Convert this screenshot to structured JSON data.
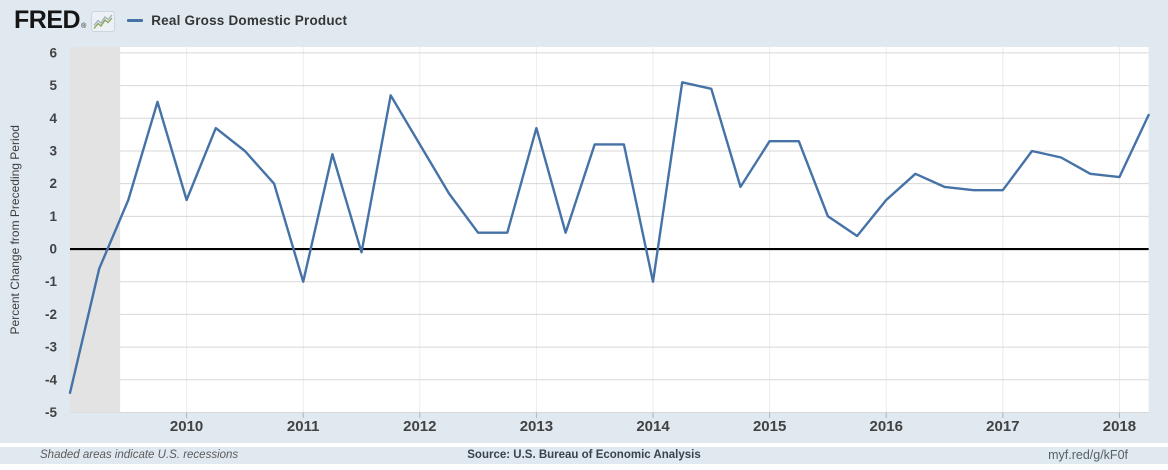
{
  "header": {
    "logo_text": "FRED",
    "registered_mark": "®",
    "series_label": "Real Gross Domestic Product"
  },
  "footer": {
    "note": "Shaded areas indicate U.S. recessions",
    "source": "Source: U.S. Bureau of Economic Analysis",
    "shortlink": "myf.red/g/kF0f"
  },
  "colors": {
    "background": "#e1e9f0",
    "plot_background": "#ffffff",
    "line": "#4572a7",
    "zero_line": "#000000",
    "recession": "#e3e3e3",
    "h_grid": "#d7d7d7",
    "v_grid": "#ececec",
    "tick_mark": "#b3b3b3",
    "tick_text": "#424242",
    "axis_title_text": "#3d3d3d"
  },
  "chart_data": {
    "type": "line",
    "title": "Real Gross Domestic Product",
    "ylabel": "Percent Change from Preceding Period",
    "xlabel": "",
    "x_start": 2009.0,
    "x_step": 0.25,
    "x_start_label": "2009 Q1",
    "x_end_label": "2018 Q2",
    "values": [
      -4.4,
      -0.6,
      1.5,
      4.5,
      1.5,
      3.7,
      3.0,
      2.0,
      -1.0,
      2.9,
      -0.1,
      4.7,
      3.2,
      1.7,
      0.5,
      0.5,
      3.7,
      0.5,
      3.2,
      3.2,
      -1.0,
      5.1,
      4.9,
      1.9,
      3.3,
      3.3,
      1.0,
      0.4,
      1.5,
      2.3,
      1.9,
      1.8,
      1.8,
      3.0,
      2.8,
      2.3,
      2.2,
      4.1
    ],
    "ylim": [
      -5,
      6.18
    ],
    "xlim": [
      2009.0,
      2018.25
    ],
    "yticks": [
      6,
      5,
      4,
      3,
      2,
      1,
      0,
      -1,
      -2,
      -3,
      -4,
      -5
    ],
    "xticks": [
      2010,
      2011,
      2012,
      2013,
      2014,
      2015,
      2016,
      2017,
      2018
    ],
    "grid": true,
    "zero_line": true,
    "recessions": [
      {
        "start": 2009.0,
        "end": 2009.43
      }
    ],
    "legend": [
      "Real Gross Domestic Product"
    ],
    "legend_position": "top-left"
  }
}
